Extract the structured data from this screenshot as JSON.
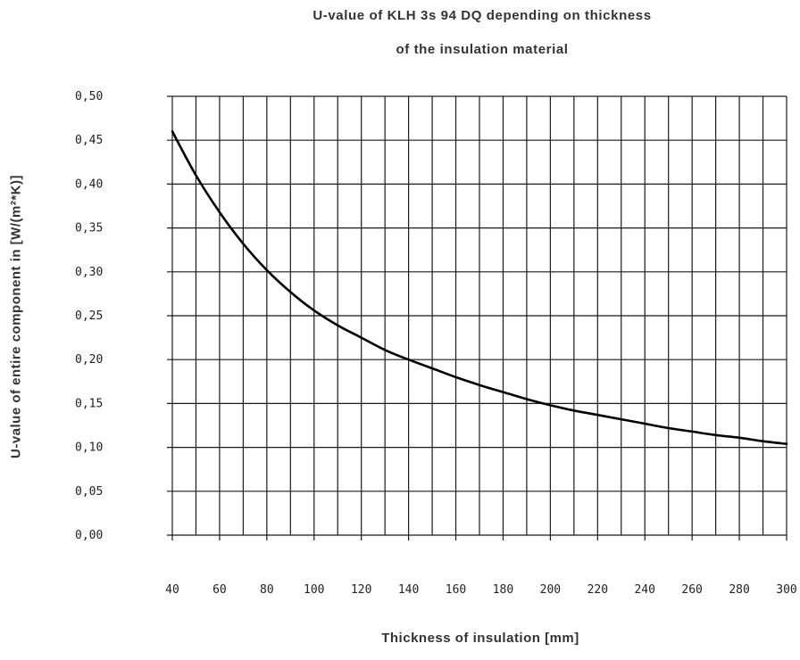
{
  "chart_data": {
    "type": "line",
    "title_lines": [
      "U-value of KLH 3s 94 DQ depending on thickness",
      "of the insulation material"
    ],
    "xlabel": "Thickness of insulation [mm]",
    "ylabel": "U-value of entire component in [W/(m²*K)]",
    "xlim": [
      40,
      300
    ],
    "ylim": [
      0,
      0.5
    ],
    "x_ticks": [
      40,
      60,
      80,
      100,
      120,
      140,
      160,
      180,
      200,
      220,
      240,
      260,
      280,
      300
    ],
    "x_tick_labels": [
      "40",
      "60",
      "80",
      "100",
      "120",
      "140",
      "160",
      "180",
      "200",
      "220",
      "240",
      "260",
      "280",
      "300"
    ],
    "y_ticks": [
      0,
      0.05,
      0.1,
      0.15,
      0.2,
      0.25,
      0.3,
      0.35,
      0.4,
      0.45,
      0.5
    ],
    "y_tick_labels": [
      "0,00",
      "0,05",
      "0,10",
      "0,15",
      "0,20",
      "0,25",
      "0,30",
      "0,35",
      "0,40",
      "0,45",
      "0,50"
    ],
    "grid": true,
    "series": [
      {
        "x": [
          40,
          50,
          60,
          70,
          80,
          90,
          100,
          110,
          120,
          130,
          140,
          150,
          160,
          170,
          180,
          190,
          200,
          210,
          220,
          230,
          240,
          250,
          260,
          270,
          280,
          290,
          300
        ],
        "values": [
          0.46,
          0.41,
          0.368,
          0.332,
          0.302,
          0.277,
          0.256,
          0.239,
          0.225,
          0.211,
          0.2,
          0.19,
          0.18,
          0.171,
          0.163,
          0.155,
          0.148,
          0.142,
          0.137,
          0.132,
          0.127,
          0.122,
          0.118,
          0.114,
          0.111,
          0.107,
          0.104
        ],
        "color": "#000000"
      }
    ]
  }
}
